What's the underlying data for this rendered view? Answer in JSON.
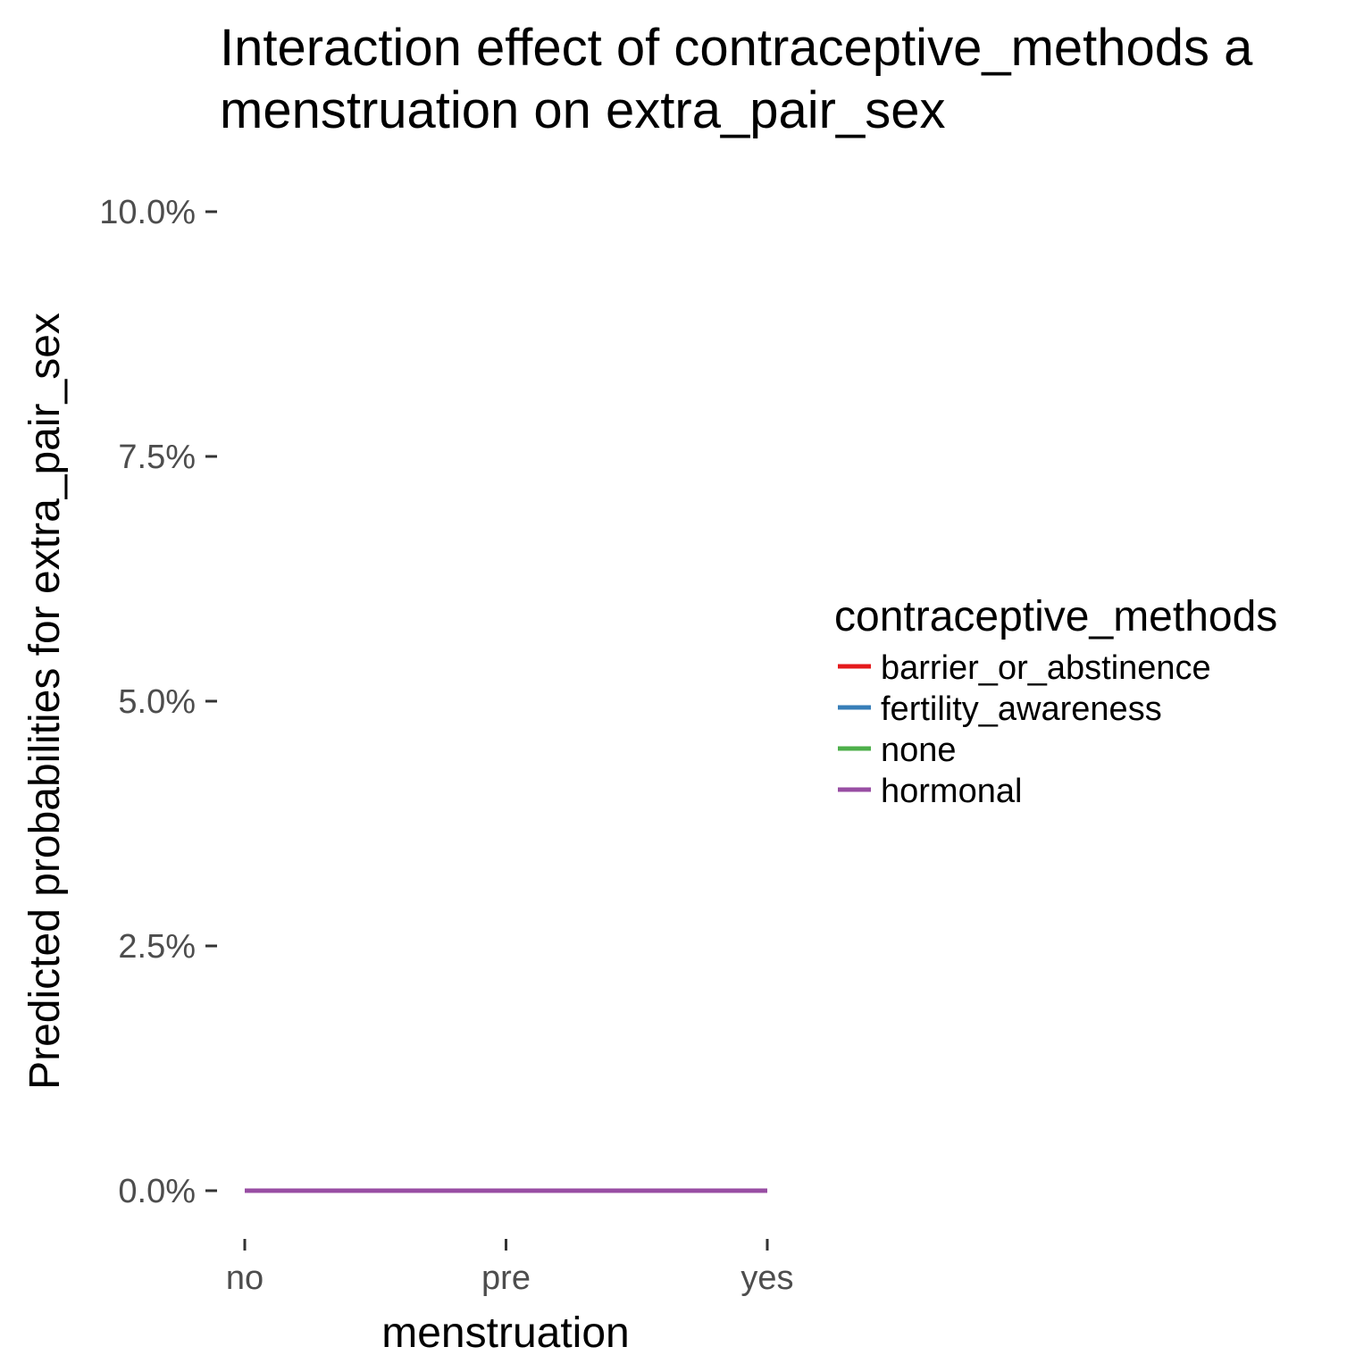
{
  "chart_data": {
    "type": "line",
    "title": "Interaction effect of contraceptive_methods a",
    "title_line2": "menstruation on extra_pair_sex",
    "xlabel": "menstruation",
    "ylabel": "Predicted probabilities for extra_pair_sex",
    "categories": [
      "no",
      "pre",
      "yes"
    ],
    "ylim": [
      0,
      0.1
    ],
    "yticks": [
      0,
      0.025,
      0.05,
      0.075,
      0.1
    ],
    "ytick_labels": [
      "0.0%",
      "2.5%",
      "5.0%",
      "7.5%",
      "10.0%"
    ],
    "grid": false,
    "legend": {
      "title": "contraceptive_methods",
      "position": "right"
    },
    "series": [
      {
        "name": "barrier_or_abstinence",
        "color": "#e41a1c",
        "values": [
          0,
          0,
          0
        ]
      },
      {
        "name": "fertility_awareness",
        "color": "#377eb8",
        "values": [
          0,
          0,
          0
        ]
      },
      {
        "name": "none",
        "color": "#4daf4a",
        "values": [
          0,
          0,
          0
        ]
      },
      {
        "name": "hormonal",
        "color": "#984ea3",
        "values": [
          0,
          0,
          0
        ]
      }
    ]
  }
}
